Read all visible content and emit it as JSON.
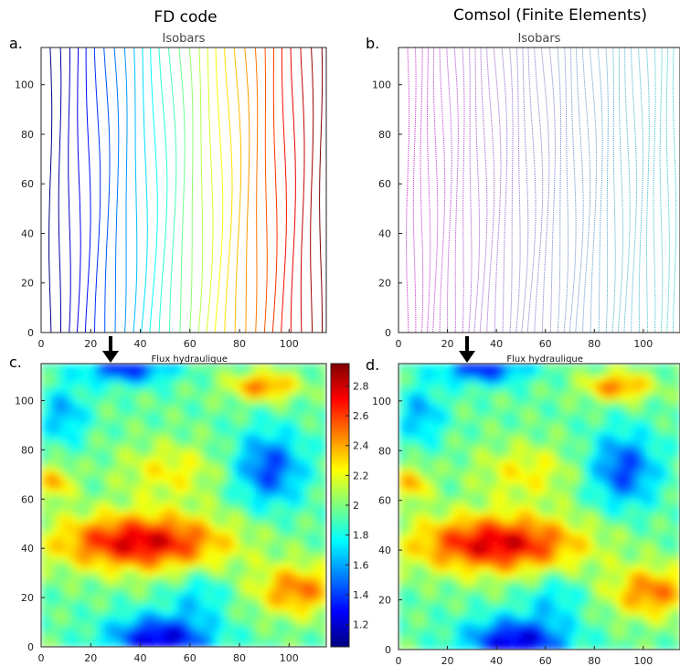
{
  "column_titles": [
    "FD code",
    "Comsol (Finite Elements)"
  ],
  "panel_labels": [
    "a.",
    "b.",
    "c.",
    "d."
  ],
  "colors": {
    "jet": [
      "#00007f",
      "#0000ff",
      "#007fff",
      "#00ffff",
      "#7fff7f",
      "#ffff00",
      "#ff7f00",
      "#ff0000",
      "#7f0000"
    ],
    "magenta_cyan": [
      "#cc33cc",
      "#33cccc"
    ],
    "arrow": "#000000"
  },
  "chart_data": [
    {
      "panel": "a.",
      "type": "contour",
      "title": "Isobars",
      "xlim": [
        0,
        115
      ],
      "ylim": [
        0,
        115
      ],
      "xticks": [
        0,
        20,
        40,
        60,
        80,
        100
      ],
      "yticks": [
        0,
        20,
        40,
        60,
        80,
        100
      ],
      "grid": false,
      "n_levels": 30,
      "colormap": "jet"
    },
    {
      "panel": "b.",
      "type": "contour",
      "title": "Isobars",
      "xlim": [
        0,
        115
      ],
      "ylim": [
        0,
        115
      ],
      "xticks": [
        0,
        20,
        40,
        60,
        80,
        100
      ],
      "yticks": [
        0,
        20,
        40,
        60,
        80,
        100
      ],
      "grid": false,
      "n_levels": 40,
      "colormap": "magenta-cyan"
    },
    {
      "panel": "c.",
      "type": "heatmap",
      "title": "Flux hydraulique",
      "xlim": [
        0,
        115
      ],
      "ylim": [
        0,
        115
      ],
      "xticks": [
        0,
        20,
        40,
        60,
        80,
        100
      ],
      "yticks": [
        0,
        20,
        40,
        60,
        80,
        100
      ],
      "colormap": "jet",
      "colorbar": {
        "range": [
          1.05,
          2.95
        ],
        "ticks": [
          1.2,
          1.4,
          1.6,
          1.8,
          2,
          2.2,
          2.4,
          2.6,
          2.8
        ]
      },
      "annotation": "downward arrow at x≈28 above the top edge"
    },
    {
      "panel": "d.",
      "type": "heatmap",
      "title": "Flux hydraulique",
      "xlim": [
        0,
        115
      ],
      "ylim": [
        0,
        115
      ],
      "xticks": [
        0,
        20,
        40,
        60,
        80,
        100
      ],
      "yticks": [
        0,
        20,
        40,
        60,
        80,
        100
      ],
      "colormap": "jet",
      "annotation": "downward arrow at x≈28 above the top edge"
    }
  ]
}
